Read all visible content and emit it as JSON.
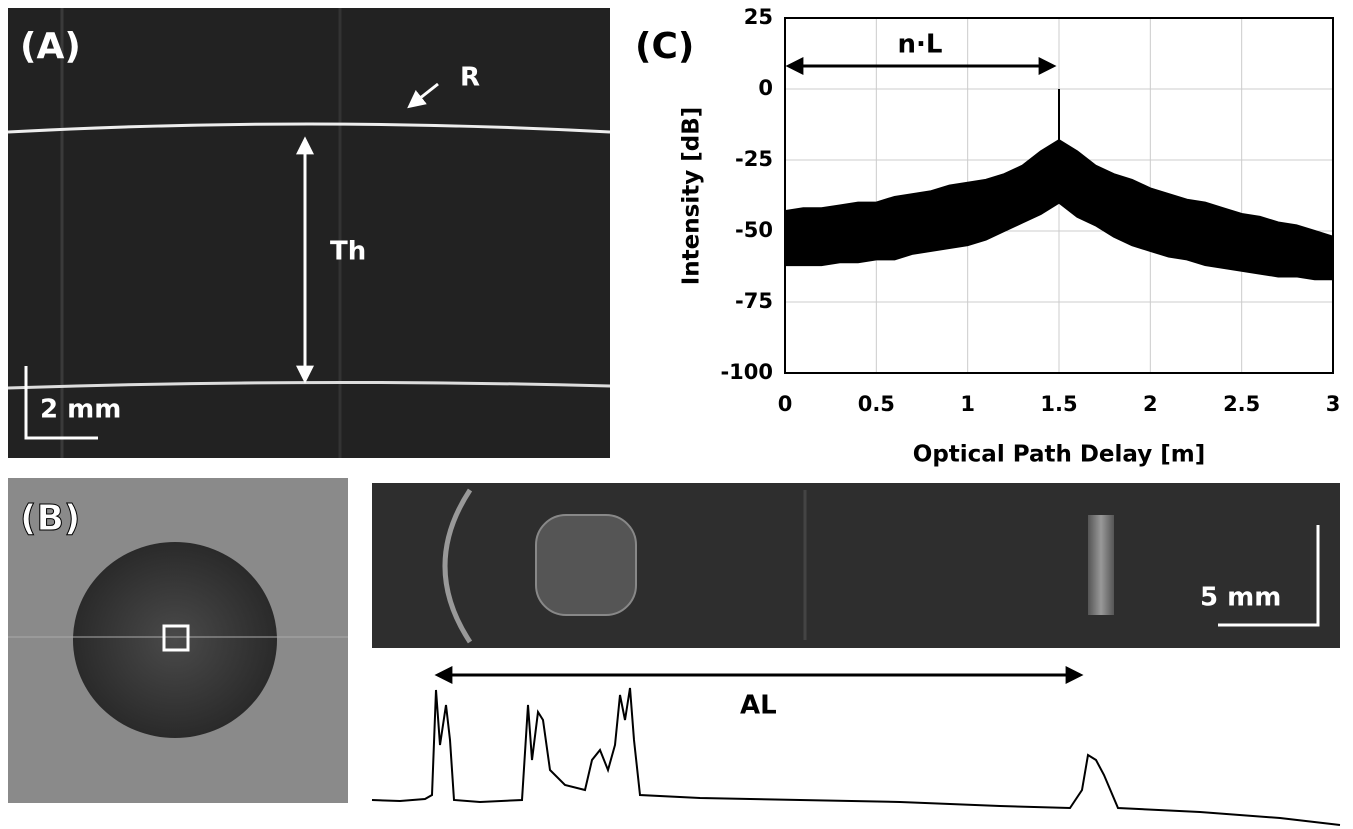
{
  "panel_a": {
    "label": "(A)",
    "marker": "R",
    "thickness": "Th",
    "scale": "2 mm"
  },
  "panel_b": {
    "label": "(B)",
    "scale": "5 mm",
    "length": "AL"
  },
  "chart_data": {
    "type": "band",
    "panel_label": "(C)",
    "annotation": "n·L",
    "xlabel": "Optical Path Delay [m]",
    "ylabel": "Intensity [dB]",
    "x": [
      0,
      0.1,
      0.2,
      0.3,
      0.4,
      0.5,
      0.6,
      0.7,
      0.8,
      0.9,
      1.0,
      1.1,
      1.2,
      1.3,
      1.4,
      1.5,
      1.6,
      1.7,
      1.8,
      1.9,
      2.0,
      2.1,
      2.2,
      2.3,
      2.4,
      2.5,
      2.6,
      2.7,
      2.8,
      2.9,
      3.0
    ],
    "series": [
      {
        "color": "#000000",
        "values": [
          -43,
          -42,
          -42,
          -41,
          -40,
          -40,
          -38,
          -37,
          -36,
          -34,
          -33,
          -32,
          -30,
          -27,
          -22,
          -18,
          -22,
          -27,
          -30,
          -32,
          -35,
          -37,
          -39,
          -40,
          -42,
          -44,
          -45,
          -47,
          -48,
          -50,
          -52
        ]
      },
      {
        "color": "#000000",
        "values": [
          -62,
          -62,
          -62,
          -61,
          -61,
          -60,
          -60,
          -58,
          -57,
          -56,
          -55,
          -53,
          -50,
          -47,
          -44,
          -40,
          -45,
          -48,
          -52,
          -55,
          -57,
          -59,
          -60,
          -62,
          -63,
          -64,
          -65,
          -66,
          -66,
          -67,
          -67
        ]
      }
    ],
    "peak": {
      "x": 1.5,
      "value": 0
    },
    "xlim": [
      0,
      3
    ],
    "ylim": [
      -100,
      25
    ],
    "xticks": [
      0,
      0.5,
      1,
      1.5,
      2,
      2.5,
      3
    ],
    "yticks": [
      25,
      0,
      -25,
      -50,
      -75,
      -100
    ],
    "grid": true
  }
}
